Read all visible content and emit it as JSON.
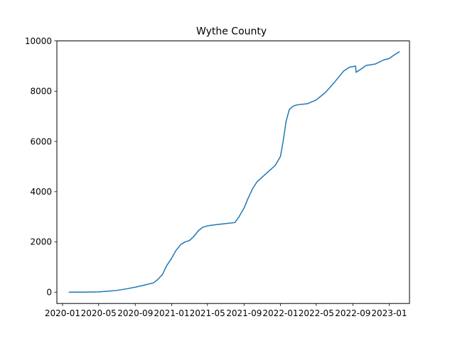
{
  "chart_data": {
    "type": "line",
    "title": "Wythe County",
    "xlabel": "",
    "ylabel": "",
    "line_color": "#1f77b4",
    "grid": false,
    "x_ticks": [
      {
        "date": "2020-01-01",
        "label": "2020-01"
      },
      {
        "date": "2020-05-01",
        "label": "2020-05"
      },
      {
        "date": "2020-09-01",
        "label": "2020-09"
      },
      {
        "date": "2021-01-01",
        "label": "2021-01"
      },
      {
        "date": "2021-05-01",
        "label": "2021-05"
      },
      {
        "date": "2021-09-01",
        "label": "2021-09"
      },
      {
        "date": "2022-01-01",
        "label": "2022-01"
      },
      {
        "date": "2022-05-01",
        "label": "2022-05"
      },
      {
        "date": "2022-09-01",
        "label": "2022-09"
      },
      {
        "date": "2023-01-01",
        "label": "2023-01"
      }
    ],
    "y_ticks": [
      {
        "value": 0,
        "label": "0"
      },
      {
        "value": 2000,
        "label": "2000"
      },
      {
        "value": 4000,
        "label": "4000"
      },
      {
        "value": 6000,
        "label": "6000"
      },
      {
        "value": 8000,
        "label": "8000"
      },
      {
        "value": 10000,
        "label": "10000"
      }
    ],
    "xlim": [
      "2019-12-13",
      "2023-03-10"
    ],
    "ylim": [
      -450,
      10000
    ],
    "series": [
      {
        "name": "Wythe County",
        "points": [
          [
            "2020-01-22",
            0
          ],
          [
            "2020-03-15",
            2
          ],
          [
            "2020-05-01",
            12
          ],
          [
            "2020-06-01",
            40
          ],
          [
            "2020-07-01",
            70
          ],
          [
            "2020-08-01",
            130
          ],
          [
            "2020-09-01",
            200
          ],
          [
            "2020-10-01",
            280
          ],
          [
            "2020-11-01",
            370
          ],
          [
            "2020-11-15",
            500
          ],
          [
            "2020-12-01",
            700
          ],
          [
            "2020-12-15",
            1050
          ],
          [
            "2021-01-01",
            1350
          ],
          [
            "2021-01-15",
            1650
          ],
          [
            "2021-02-01",
            1900
          ],
          [
            "2021-02-15",
            2000
          ],
          [
            "2021-03-01",
            2050
          ],
          [
            "2021-03-15",
            2200
          ],
          [
            "2021-04-01",
            2450
          ],
          [
            "2021-04-15",
            2580
          ],
          [
            "2021-05-01",
            2640
          ],
          [
            "2021-06-01",
            2690
          ],
          [
            "2021-07-01",
            2730
          ],
          [
            "2021-08-01",
            2770
          ],
          [
            "2021-08-15",
            3000
          ],
          [
            "2021-09-01",
            3350
          ],
          [
            "2021-09-15",
            3750
          ],
          [
            "2021-10-01",
            4150
          ],
          [
            "2021-10-15",
            4400
          ],
          [
            "2021-11-01",
            4580
          ],
          [
            "2021-11-15",
            4730
          ],
          [
            "2021-12-01",
            4900
          ],
          [
            "2021-12-15",
            5050
          ],
          [
            "2022-01-01",
            5400
          ],
          [
            "2022-01-10",
            6000
          ],
          [
            "2022-01-20",
            6800
          ],
          [
            "2022-01-31",
            7280
          ],
          [
            "2022-02-15",
            7420
          ],
          [
            "2022-03-01",
            7460
          ],
          [
            "2022-04-01",
            7500
          ],
          [
            "2022-05-01",
            7650
          ],
          [
            "2022-06-01",
            7950
          ],
          [
            "2022-07-01",
            8350
          ],
          [
            "2022-08-01",
            8800
          ],
          [
            "2022-08-20",
            8950
          ],
          [
            "2022-09-10",
            9000
          ],
          [
            "2022-09-12",
            8750
          ],
          [
            "2022-10-01",
            8900
          ],
          [
            "2022-10-15",
            9020
          ],
          [
            "2022-11-15",
            9080
          ],
          [
            "2022-12-15",
            9250
          ],
          [
            "2023-01-01",
            9300
          ],
          [
            "2023-01-15",
            9420
          ],
          [
            "2023-02-05",
            9580
          ]
        ]
      }
    ]
  }
}
